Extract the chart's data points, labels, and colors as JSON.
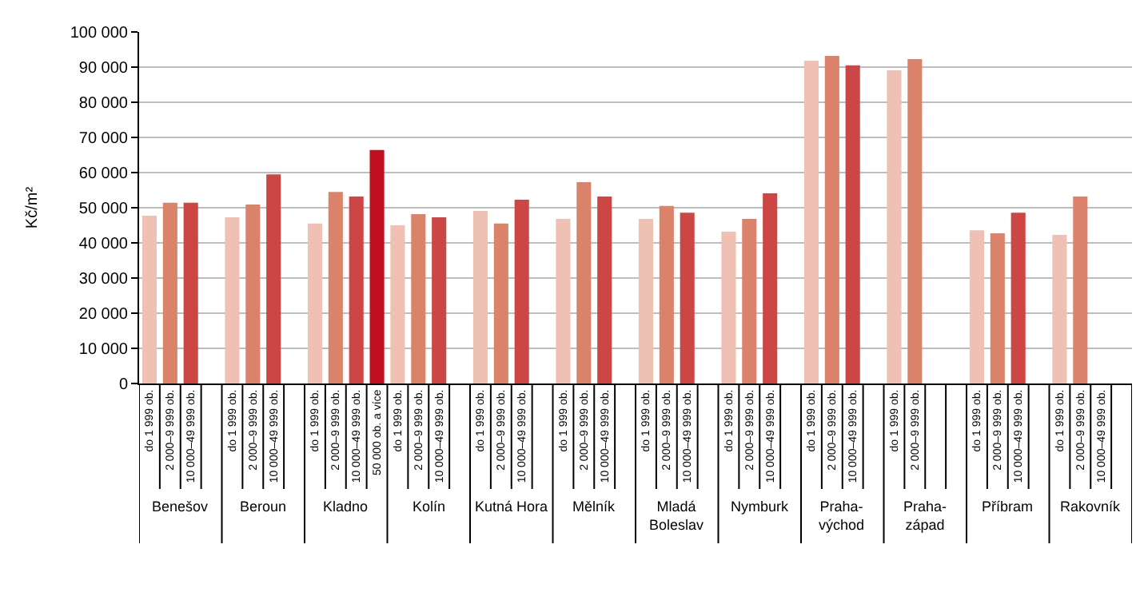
{
  "chart_data": {
    "type": "bar",
    "ylabel": "Kč/m²",
    "categories": [
      "do 1 999 ob.",
      "2 000–9 999 ob.",
      "10 000–49 999 ob.",
      null,
      "do 1 999 ob.",
      "2 000–9 999 ob.",
      "10 000–49 999 ob.",
      null,
      "do 1 999 ob.",
      "2 000–9 999 ob.",
      "10 000–49 999 ob.",
      "50 000 ob. a více",
      "do 1 999 ob.",
      "2 000–9 999 ob.",
      "10 000–49 999 ob.",
      null,
      "do 1 999 ob.",
      "2 000–9 999 ob.",
      "10 000–49 999 ob.",
      null,
      "do 1 999 ob.",
      "2 000–9 999 ob.",
      "10 000–49 999 ob.",
      null,
      "do 1 999 ob.",
      "2 000–9 999 ob.",
      "10 000–49 999 ob.",
      null,
      "do 1 999 ob.",
      "2 000–9 999 ob.",
      "10 000–49 999 ob.",
      null,
      "do 1 999 ob.",
      "2 000–9 999 ob.",
      "10 000–49 999 ob.",
      null,
      "do 1 999 ob.",
      "2 000–9 999 ob.",
      null,
      null,
      "do 1 999 ob.",
      "2 000–9 999 ob.",
      "10 000–49 999 ob.",
      null,
      "do 1 999 ob.",
      "2 000–9 999 ob.",
      "10 000–49 999 ob.",
      null
    ],
    "values": [
      47700,
      51400,
      51400,
      null,
      47300,
      50900,
      59500,
      null,
      45500,
      54500,
      53200,
      66400,
      45000,
      48200,
      47300,
      null,
      49100,
      45500,
      52300,
      null,
      46800,
      57300,
      53200,
      null,
      46800,
      50500,
      48600,
      null,
      43200,
      46800,
      54100,
      null,
      91800,
      93200,
      90500,
      null,
      89100,
      92300,
      null,
      null,
      43600,
      42700,
      48600,
      null,
      42300,
      53200,
      null,
      null
    ],
    "colors": [
      "#eec1b4",
      "#db836a",
      "#cc4645",
      "#c0101f",
      "#eec1b4",
      "#db836a",
      "#cc4645",
      "#c0101f",
      "#eec1b4",
      "#db836a",
      "#cc4645",
      "#c0101f",
      "#eec1b4",
      "#db836a",
      "#cc4645",
      "#c0101f",
      "#eec1b4",
      "#db836a",
      "#cc4645",
      "#c0101f",
      "#eec1b4",
      "#db836a",
      "#cc4645",
      "#c0101f",
      "#eec1b4",
      "#db836a",
      "#cc4645",
      "#c0101f",
      "#eec1b4",
      "#db836a",
      "#cc4645",
      "#c0101f",
      "#eec1b4",
      "#db836a",
      "#cc4645",
      "#c0101f",
      "#eec1b4",
      "#db836a",
      "#cc4645",
      "#c0101f",
      "#eec1b4",
      "#db836a",
      "#cc4645",
      "#c0101f",
      "#eec1b4",
      "#db836a",
      "#cc4645",
      "#c0101f"
    ],
    "annotations": [
      "Benešov",
      "Beroun",
      "Kladno",
      "Kolín",
      "Kutná Hora",
      "Mělník",
      "Mladá Boleslav",
      "Nymburk",
      "Praha-východ",
      "Praha-západ",
      "Příbram",
      "Rakovník"
    ],
    "ylim": [
      0,
      100000
    ],
    "yticks": [
      0,
      {
        "value": 10000,
        "label": "10 000"
      },
      {
        "value": 20000,
        "label": "20 000"
      },
      {
        "value": 30000,
        "label": "30 000"
      },
      {
        "value": 40000,
        "label": "40 000"
      },
      {
        "value": 50000,
        "label": "50 000"
      },
      {
        "value": 60000,
        "label": "60 000"
      },
      {
        "value": 70000,
        "label": "70 000"
      },
      {
        "value": 80000,
        "label": "80 000"
      },
      {
        "value": 90000,
        "label": "90 000"
      },
      {
        "value": 100000,
        "label": "100 000"
      }
    ],
    "grid": "y"
  }
}
